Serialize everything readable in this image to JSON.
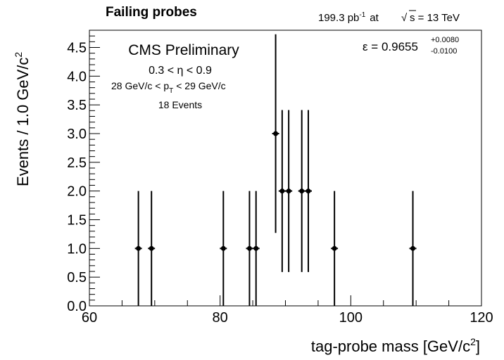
{
  "header": {
    "title": "Failing probes",
    "lumi_value": "199.3 pb",
    "lumi_exp": "-1",
    "lumi_at": "at",
    "sqrt_symbol": "√",
    "energy_label": "s = 13 TeV"
  },
  "annotations": {
    "experiment": "CMS Preliminary",
    "eta_range": "0.3 < η < 0.9",
    "pt_left": "28 GeV/c < p",
    "pt_sub": "T",
    "pt_right": "< 29 GeV/c",
    "events": "18 Events",
    "eff_main": "ε = 0.9655",
    "eff_up": "+0.0080",
    "eff_down": "-0.0100"
  },
  "chart_data": {
    "type": "scatter",
    "xlabel": "tag-probe mass [GeV/c",
    "xlabel_sup": "2",
    "xlabel_end": "]",
    "ylabel": "Events / 1.0 GeV/c",
    "ylabel_sup": "2",
    "xlim": [
      60,
      120
    ],
    "ylim": [
      0,
      4.8
    ],
    "x_ticks": [
      "60",
      "80",
      "100",
      "120"
    ],
    "y_ticks": [
      "0.0",
      "0.5",
      "1.0",
      "1.5",
      "2.0",
      "2.5",
      "3.0",
      "3.5",
      "4.0",
      "4.5"
    ],
    "grid": false,
    "series": [
      {
        "points": [
          {
            "x": 67.5,
            "y": 1,
            "err_low": 1.0,
            "err_high": 1.0
          },
          {
            "x": 69.5,
            "y": 1,
            "err_low": 1.0,
            "err_high": 1.0
          },
          {
            "x": 80.5,
            "y": 1,
            "err_low": 1.0,
            "err_high": 1.0
          },
          {
            "x": 84.5,
            "y": 1,
            "err_low": 1.0,
            "err_high": 1.0
          },
          {
            "x": 85.5,
            "y": 1,
            "err_low": 1.0,
            "err_high": 1.0
          },
          {
            "x": 88.5,
            "y": 3,
            "err_low": 1.73,
            "err_high": 1.73
          },
          {
            "x": 89.5,
            "y": 2,
            "err_low": 1.41,
            "err_high": 1.41
          },
          {
            "x": 90.5,
            "y": 2,
            "err_low": 1.41,
            "err_high": 1.41
          },
          {
            "x": 92.5,
            "y": 2,
            "err_low": 1.41,
            "err_high": 1.41
          },
          {
            "x": 93.5,
            "y": 2,
            "err_low": 1.41,
            "err_high": 1.41
          },
          {
            "x": 97.5,
            "y": 1,
            "err_low": 1.0,
            "err_high": 1.0
          },
          {
            "x": 109.5,
            "y": 1,
            "err_low": 1.0,
            "err_high": 1.0
          }
        ]
      }
    ]
  }
}
